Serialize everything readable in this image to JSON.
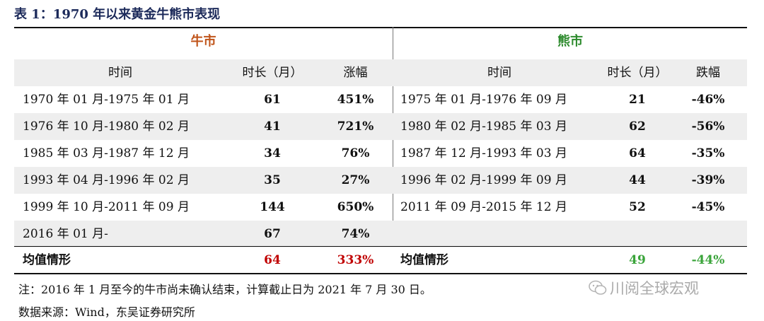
{
  "title": "表 1：1970 年以来黄金牛熊市表现",
  "bull": {
    "label": "牛市",
    "col_time": "时间",
    "col_duration": "时长（月）",
    "col_change": "涨幅",
    "rows": [
      {
        "time": "1970 年 01 月-1975 年 01 月",
        "duration": "61",
        "change": "451%"
      },
      {
        "time": "1976 年 10 月-1980 年 02 月",
        "duration": "41",
        "change": "721%"
      },
      {
        "time": "1985 年 03 月-1987 年 12 月",
        "duration": "34",
        "change": "76%"
      },
      {
        "time": "1993 年 04 月-1996 年 02 月",
        "duration": "35",
        "change": "27%"
      },
      {
        "time": "1999 年 10 月-2011 年 09 月",
        "duration": "144",
        "change": "650%"
      },
      {
        "time": "2016 年 01 月-",
        "duration": "67",
        "change": "74%"
      }
    ],
    "avg_label": "均值情形",
    "avg_duration": "64",
    "avg_change": "333%"
  },
  "bear": {
    "label": "熊市",
    "col_time": "时间",
    "col_duration": "时长（月）",
    "col_change": "跌幅",
    "rows": [
      {
        "time": "1975 年 01 月-1976 年 09 月",
        "duration": "21",
        "change": "-46%"
      },
      {
        "time": "1980 年 02 月-1985 年 03 月",
        "duration": "62",
        "change": "-56%"
      },
      {
        "time": "1987 年 12 月-1993 年 03 月",
        "duration": "64",
        "change": "-35%"
      },
      {
        "time": "1996 年 02 月-1999 年 09 月",
        "duration": "44",
        "change": "-39%"
      },
      {
        "time": "2011 年 09 月-2015 年 12 月",
        "duration": "52",
        "change": "-45%"
      }
    ],
    "avg_label": "均值情形",
    "avg_duration": "49",
    "avg_change": "-44%"
  },
  "note": "注：2016 年 1 月至今的牛市尚未确认结束，计算截止日为 2021 年 7 月 30 日。",
  "source": "数据来源：Wind，东吴证券研究所",
  "watermark": "川阅全球宏观"
}
